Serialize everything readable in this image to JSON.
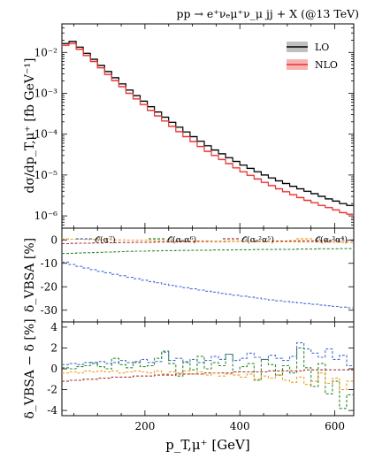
{
  "chart_data": [
    {
      "type": "line",
      "panel": "main",
      "title": "pp → e⁺νₑμ⁺ν_μ jj + X (@13 TeV)",
      "ylabel": "dσ/dp_T,μ⁺ [fb GeV⁻¹]",
      "xlabel": "",
      "yscale": "log",
      "xlim": [
        25,
        640
      ],
      "ylim": [
        5e-07,
        0.05
      ],
      "yticks": [
        "10⁻⁶",
        "10⁻⁵",
        "10⁻⁴",
        "10⁻³",
        "10⁻²"
      ],
      "legend_position": "top-right",
      "x_edges": [
        25,
        40,
        55,
        70,
        85,
        100,
        115,
        130,
        145,
        160,
        175,
        190,
        205,
        220,
        235,
        250,
        265,
        280,
        295,
        310,
        325,
        340,
        355,
        370,
        385,
        400,
        415,
        430,
        445,
        460,
        475,
        490,
        505,
        520,
        535,
        550,
        565,
        580,
        595,
        610,
        625,
        640
      ],
      "series": [
        {
          "name": "LO",
          "color": "#000000",
          "values": [
            0.0165,
            0.0185,
            0.0135,
            0.0095,
            0.0068,
            0.0048,
            0.0034,
            0.0024,
            0.0017,
            0.0012,
            0.00088,
            0.00064,
            0.00047,
            0.00035,
            0.00026,
            0.000195,
            0.000148,
            0.000113,
            8.7e-05,
            6.7e-05,
            5.2e-05,
            4.1e-05,
            3.3e-05,
            2.65e-05,
            2.15e-05,
            1.75e-05,
            1.45e-05,
            1.2e-05,
            1e-05,
            8.5e-06,
            7.2e-06,
            6.2e-06,
            5.3e-06,
            4.6e-06,
            4e-06,
            3.5e-06,
            3e-06,
            2.6e-06,
            2.3e-06,
            2e-06,
            1.8e-06
          ]
        },
        {
          "name": "NLO",
          "color": "#e8312f",
          "values": [
            0.015,
            0.0165,
            0.012,
            0.0084,
            0.006,
            0.0042,
            0.0029,
            0.00205,
            0.00145,
            0.001,
            0.00073,
            0.00053,
            0.00038,
            0.00028,
            0.00021,
            0.000155,
            0.000115,
            8.7e-05,
            6.6e-05,
            5e-05,
            3.8e-05,
            3e-05,
            2.4e-05,
            1.9e-05,
            1.5e-05,
            1.2e-05,
            9.8e-06,
            8e-06,
            6.6e-06,
            5.5e-06,
            4.6e-06,
            3.9e-06,
            3.3e-06,
            2.8e-06,
            2.4e-06,
            2.1e-06,
            1.8e-06,
            1.6e-06,
            1.4e-06,
            1.2e-06,
            1.1e-06
          ]
        }
      ]
    },
    {
      "type": "line",
      "panel": "middle",
      "ylabel": "δ_VBSA [%]",
      "ylim": [
        -35,
        5
      ],
      "yticks": [
        -30,
        -20,
        -10,
        0
      ],
      "legend_position": "top",
      "x_edges": [
        25,
        40,
        55,
        70,
        85,
        100,
        115,
        130,
        145,
        160,
        175,
        190,
        205,
        220,
        235,
        250,
        265,
        280,
        295,
        310,
        325,
        340,
        355,
        370,
        385,
        400,
        415,
        430,
        445,
        460,
        475,
        490,
        505,
        520,
        535,
        550,
        565,
        580,
        595,
        610,
        625,
        640
      ],
      "series": [
        {
          "name": "𝒪(α⁷)",
          "color": "#4a6fd9",
          "values": [
            -9.5,
            -10.5,
            -11.3,
            -12.0,
            -12.7,
            -13.4,
            -14.0,
            -14.7,
            -15.3,
            -16.0,
            -16.6,
            -17.2,
            -17.8,
            -18.3,
            -18.9,
            -19.4,
            -19.9,
            -20.4,
            -20.9,
            -21.4,
            -21.9,
            -22.3,
            -22.8,
            -23.2,
            -23.6,
            -24.0,
            -24.4,
            -24.8,
            -25.2,
            -25.6,
            -26.0,
            -26.3,
            -26.6,
            -26.9,
            -27.2,
            -27.5,
            -27.8,
            -28.1,
            -28.4,
            -28.7,
            -29.0
          ]
        },
        {
          "name": "𝒪(αₛα⁶)",
          "color": "#2e8b2e",
          "values": [
            -5.8,
            -5.7,
            -5.6,
            -5.5,
            -5.4,
            -5.3,
            -5.2,
            -5.1,
            -5.0,
            -4.9,
            -4.8,
            -4.8,
            -4.7,
            -4.7,
            -4.6,
            -4.6,
            -4.5,
            -4.5,
            -4.4,
            -4.4,
            -4.4,
            -4.3,
            -4.3,
            -4.3,
            -4.2,
            -4.2,
            -4.2,
            -4.1,
            -4.1,
            -4.1,
            -4.0,
            -4.0,
            -4.0,
            -3.9,
            -3.9,
            -3.9,
            -3.8,
            -3.8,
            -3.8,
            -3.7,
            -3.7
          ]
        },
        {
          "name": "𝒪(αₛ²α⁵)",
          "color": "#a83232",
          "values": [
            -1.6,
            -1.5,
            -1.4,
            -1.4,
            -1.3,
            -1.3,
            -1.2,
            -1.2,
            -1.1,
            -1.1,
            -1.0,
            -1.0,
            -1.0,
            -0.9,
            -0.9,
            -0.9,
            -0.8,
            -0.8,
            -0.8,
            -0.7,
            -0.7,
            -0.7,
            -0.7,
            -0.6,
            -0.6,
            -0.6,
            -0.6,
            -0.5,
            -0.5,
            -0.5,
            -0.5,
            -0.5,
            -0.4,
            -0.4,
            -0.4,
            -0.4,
            -0.4,
            -0.3,
            -0.3,
            -0.3,
            -0.3
          ]
        },
        {
          "name": "𝒪(αₛ³α⁴)",
          "color": "#f0a020",
          "values": [
            0.4,
            0.3,
            0.3,
            0.2,
            0.2,
            0.1,
            0.1,
            0.0,
            0.0,
            -0.1,
            -0.1,
            -0.1,
            -0.2,
            -0.2,
            -0.2,
            -0.3,
            -0.3,
            -0.3,
            -0.4,
            -0.4,
            -0.4,
            -0.5,
            -0.5,
            -0.5,
            -0.6,
            -0.6,
            -0.6,
            -0.7,
            -0.7,
            -0.7,
            -0.8,
            -0.8,
            -0.8,
            -0.9,
            -0.9,
            -0.9,
            -1.0,
            -1.0,
            -1.0,
            -1.1,
            -1.1
          ]
        }
      ]
    },
    {
      "type": "line",
      "panel": "bottom",
      "ylabel": "δ_VBSA − δ [%]",
      "xlabel": "p_T,μ⁺ [GeV]",
      "ylim": [
        -4.5,
        4.5
      ],
      "yticks": [
        -4,
        -2,
        0,
        2,
        4
      ],
      "xticks": [
        200,
        400,
        600
      ],
      "x_edges": [
        25,
        40,
        55,
        70,
        85,
        100,
        115,
        130,
        145,
        160,
        175,
        190,
        205,
        220,
        235,
        250,
        265,
        280,
        295,
        310,
        325,
        340,
        355,
        370,
        385,
        400,
        415,
        430,
        445,
        460,
        475,
        490,
        505,
        520,
        535,
        550,
        565,
        580,
        595,
        610,
        625,
        640
      ],
      "series": [
        {
          "name": "𝒪(α⁷)",
          "color": "#4a6fd9",
          "values": [
            0.4,
            0.5,
            0.4,
            0.6,
            0.5,
            0.7,
            0.5,
            0.6,
            0.8,
            0.6,
            0.7,
            0.9,
            0.6,
            0.7,
            1.6,
            0.8,
            1.0,
            0.7,
            0.9,
            0.6,
            0.8,
            1.2,
            0.9,
            1.4,
            0.8,
            1.0,
            1.5,
            1.1,
            0.9,
            1.3,
            1.0,
            0.8,
            1.2,
            2.5,
            1.9,
            1.5,
            1.1,
            1.9,
            0.9,
            1.3,
            0.3
          ]
        },
        {
          "name": "𝒪(αₛα⁶)",
          "color": "#2e8b2e",
          "values": [
            0.1,
            0.0,
            0.2,
            0.3,
            0.6,
            0.2,
            0.0,
            1.0,
            0.4,
            0.1,
            0.6,
            0.2,
            0.3,
            1.0,
            1.7,
            0.5,
            -0.7,
            0.6,
            -0.1,
            1.2,
            0.0,
            0.6,
            0.3,
            1.4,
            -0.3,
            0.2,
            0.5,
            -1.1,
            0.9,
            0.4,
            -0.6,
            0.3,
            -0.4,
            2.0,
            0.1,
            -1.7,
            0.5,
            -2.4,
            -1.2,
            -3.8,
            -2.5
          ]
        },
        {
          "name": "𝒪(αₛ²α⁵)",
          "color": "#a83232",
          "values": [
            -1.2,
            -1.1,
            -1.1,
            -1.0,
            -1.0,
            -0.9,
            -0.9,
            -0.8,
            -0.8,
            -0.8,
            -0.7,
            -0.7,
            -0.7,
            -0.6,
            -0.6,
            -0.6,
            -0.5,
            -0.5,
            -0.5,
            -0.5,
            -0.4,
            -0.4,
            -0.4,
            -0.4,
            -0.3,
            -0.3,
            -0.3,
            -0.3,
            -0.3,
            -0.2,
            -0.2,
            -0.2,
            -0.2,
            -0.2,
            -0.1,
            -0.1,
            -0.1,
            -0.1,
            -0.1,
            -0.1,
            -0.1
          ]
        },
        {
          "name": "𝒪(αₛ³α⁴)",
          "color": "#f0a020",
          "values": [
            -0.4,
            -0.3,
            -0.4,
            -0.2,
            -0.3,
            -0.2,
            -0.3,
            -0.2,
            -0.4,
            -0.3,
            -0.2,
            -0.3,
            -0.4,
            -0.2,
            -0.5,
            -0.3,
            -0.4,
            -0.2,
            -0.5,
            -0.3,
            -0.6,
            -0.4,
            -0.7,
            -0.5,
            -0.6,
            -0.8,
            -0.5,
            -1.0,
            -0.7,
            -0.9,
            -0.6,
            -1.1,
            -1.3,
            -0.8,
            -1.5,
            -1.2,
            -0.4,
            -1.4,
            -0.9,
            -2.0,
            -1.2
          ]
        }
      ]
    }
  ]
}
